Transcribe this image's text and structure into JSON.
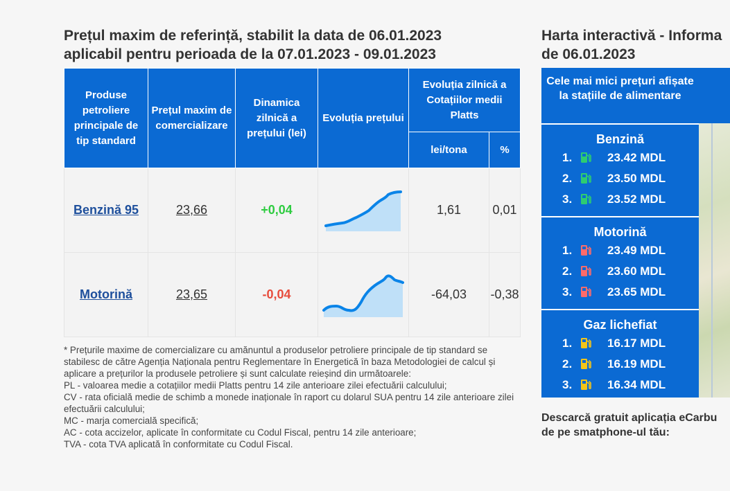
{
  "left_title": {
    "line1": "Prețul maxim de referință, stabilit la data de 06.01.2023",
    "line2": "aplicabil pentru perioada de la 07.01.2023 - 09.01.2023"
  },
  "table": {
    "headers": {
      "product": "Produse petroliere principale de tip standard",
      "max_price": "Prețul maxim de comercializare",
      "dynamics": "Dinamica zilnică a prețului (lei)",
      "evolution": "Evoluția prețului",
      "platts": "Evoluția zilnică a Cotațiilor medii Platts",
      "lei_tona": "lei/tona",
      "percent": "%"
    },
    "rows": [
      {
        "product": "Benzină 95",
        "price": "23,66",
        "dynamic": "+0,04",
        "lei_tona": "1,61",
        "percent": "0,01",
        "trend": "up"
      },
      {
        "product": "Motorină",
        "price": "23,65",
        "dynamic": "-0,04",
        "lei_tona": "-64,03",
        "percent": "-0,38",
        "trend": "down"
      }
    ]
  },
  "notes": [
    "* Prețurile maxime de comercializare cu amănuntul a produselor petroliere principale de tip standard se stabilesc de către Agenția Naționala pentru Reglementare în Energetică în baza Metodologiei de calcul și aplicare a prețurilor la produsele petroliere și sunt calculate reieșind din următoarele:",
    "PL - valoarea medie a cotațiilor medii Platts pentru 14 zile anterioare zilei efectuării calculului;",
    "CV - rata oficială medie de schimb a monede inaționale în raport cu dolarul SUA pentru 14 zile anterioare zilei efectuării calculului;",
    "MC - marja comercială specifică;",
    "AC - cota accizelor, aplicate în conformitate cu Codul Fiscal, pentru 14 zile anterioare;",
    "TVA - cota TVA aplicată în conformitate cu Codul Fiscal."
  ],
  "right_title": {
    "line1": "Harta interactivă - Informa",
    "line2": "de 06.01.2023"
  },
  "panel": {
    "head": "Cele mai mici prețuri afișate la stațiile de alimentare",
    "fuels": [
      {
        "title": "Benzină",
        "color": "#2ecc71",
        "rows": [
          {
            "n": "1.",
            "price": "23.42 MDL"
          },
          {
            "n": "2.",
            "price": "23.50 MDL"
          },
          {
            "n": "3.",
            "price": "23.52 MDL"
          }
        ]
      },
      {
        "title": "Motorină",
        "color": "#ff6b6b",
        "rows": [
          {
            "n": "1.",
            "price": "23.49 MDL"
          },
          {
            "n": "2.",
            "price": "23.60 MDL"
          },
          {
            "n": "3.",
            "price": "23.65 MDL"
          }
        ]
      },
      {
        "title": "Gaz lichefiat",
        "color": "#f5c518",
        "rows": [
          {
            "n": "1.",
            "price": "16.17 MDL"
          },
          {
            "n": "2.",
            "price": "16.19 MDL"
          },
          {
            "n": "3.",
            "price": "16.34 MDL"
          }
        ]
      }
    ]
  },
  "download": {
    "line1": "Descarcă gratuit aplicația eCarbu",
    "line2": "de pe smatphone-ul tău:"
  }
}
